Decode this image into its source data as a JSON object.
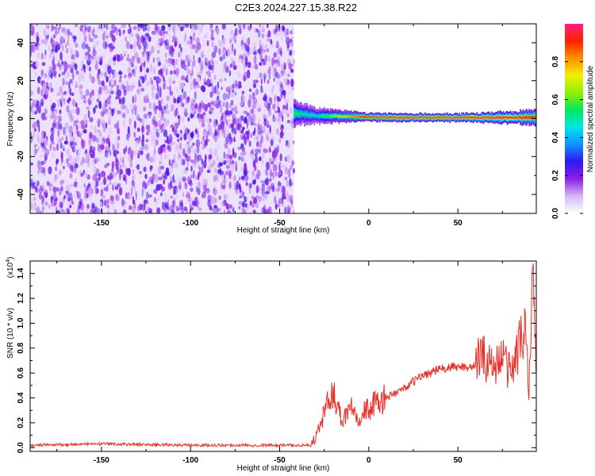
{
  "title": "C2E3.2024.227.15.38.R22",
  "chart_data": [
    {
      "type": "heatmap",
      "xlabel": "Height of straight line (km)",
      "ylabel": "Frequency (Hz)",
      "xlim": [
        -190,
        94
      ],
      "ylim": [
        -50,
        50
      ],
      "xticks": [
        -150,
        -100,
        -50,
        0,
        50
      ],
      "yticks": [
        -40,
        -20,
        0,
        20,
        40
      ],
      "noise_region": {
        "x": [
          -190,
          -42
        ],
        "y": [
          -50,
          50
        ],
        "level": 0.2
      },
      "signal_band": [
        {
          "x": -42,
          "y": 3.0,
          "width": 6,
          "level": 0.55
        },
        {
          "x": -30,
          "y": 1.5,
          "width": 4,
          "level": 0.45
        },
        {
          "x": -15,
          "y": 1.2,
          "width": 3,
          "level": 0.7
        },
        {
          "x": 0,
          "y": 0.8,
          "width": 2,
          "level": 0.95
        },
        {
          "x": 10,
          "y": 0.6,
          "width": 2,
          "level": 1.0
        },
        {
          "x": 50,
          "y": 0.5,
          "width": 2,
          "level": 1.0
        },
        {
          "x": 80,
          "y": 0.5,
          "width": 3,
          "level": 1.0
        },
        {
          "x": 94,
          "y": 0.6,
          "width": 4,
          "level": 0.9
        }
      ],
      "colorbar": {
        "label": "Normalized spectral amplitude",
        "range": [
          0,
          1
        ],
        "ticks": [
          "0.0",
          "0.2",
          "0.4",
          "0.6",
          "0.8"
        ],
        "colors": [
          "#ffffff",
          "#d5b8f5",
          "#8c20e6",
          "#3018f0",
          "#1090ff",
          "#00e6e6",
          "#00e860",
          "#90f000",
          "#f0f000",
          "#ff9000",
          "#ff2000",
          "#ff2080"
        ]
      }
    },
    {
      "type": "line",
      "xlabel": "Height of straight line (km)",
      "ylabel": "SNR (10 * v/v)",
      "scale_label": "(x10",
      "scale_exp": "4",
      "xlim": [
        -190,
        94
      ],
      "ylim": [
        -0.03,
        1.5
      ],
      "xticks": [
        -150,
        -100,
        -50,
        0,
        50
      ],
      "yticks": [
        0.0,
        0.2,
        0.4,
        0.6,
        0.8,
        1.0,
        1.2,
        1.4
      ],
      "color": "#e8302a",
      "x": [
        -190,
        -150,
        -100,
        -60,
        -32,
        -28,
        -25,
        -20,
        -15,
        -10,
        -5,
        0,
        10,
        20,
        30,
        40,
        50,
        60,
        62,
        70,
        75,
        80,
        85,
        88,
        90,
        92,
        94
      ],
      "y": [
        0.02,
        0.03,
        0.02,
        0.02,
        0.02,
        0.15,
        0.28,
        0.45,
        0.22,
        0.35,
        0.25,
        0.32,
        0.4,
        0.48,
        0.58,
        0.63,
        0.65,
        0.65,
        0.75,
        0.66,
        0.72,
        0.6,
        0.85,
        0.95,
        0.5,
        1.45,
        0.6
      ]
    }
  ]
}
